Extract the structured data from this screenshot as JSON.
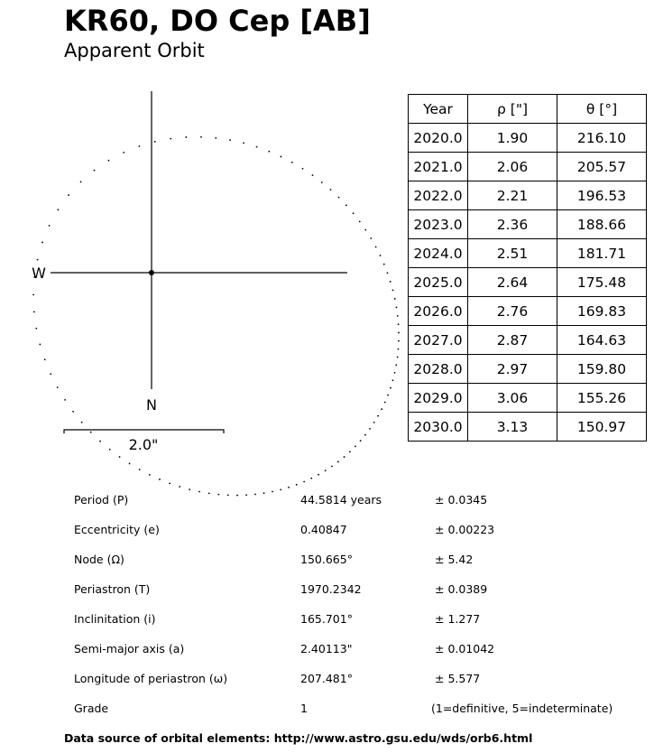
{
  "header": {
    "title": "KR60, DO Cep [AB]",
    "subtitle": "Apparent Orbit"
  },
  "chart_data": {
    "type": "scatter",
    "description_labels": {
      "west": "W",
      "north": "N",
      "scale_bar": "2.0\""
    },
    "scale_bar_arcsec": 2.0,
    "orbit_elements": {
      "P": 44.5814,
      "e": 0.40847,
      "Omega": 150.665,
      "T": 1970.2342,
      "i": 165.701,
      "a": 2.40113,
      "omega": 207.481
    },
    "primary": [
      0,
      0
    ]
  },
  "table": {
    "headers": [
      "Year",
      "ρ [\"]",
      "θ [°]"
    ],
    "rows": [
      [
        "2020.0",
        "1.90",
        "216.10"
      ],
      [
        "2021.0",
        "2.06",
        "205.57"
      ],
      [
        "2022.0",
        "2.21",
        "196.53"
      ],
      [
        "2023.0",
        "2.36",
        "188.66"
      ],
      [
        "2024.0",
        "2.51",
        "181.71"
      ],
      [
        "2025.0",
        "2.64",
        "175.48"
      ],
      [
        "2026.0",
        "2.76",
        "169.83"
      ],
      [
        "2027.0",
        "2.87",
        "164.63"
      ],
      [
        "2028.0",
        "2.97",
        "159.80"
      ],
      [
        "2029.0",
        "3.06",
        "155.26"
      ],
      [
        "2030.0",
        "3.13",
        "150.97"
      ]
    ]
  },
  "elements": [
    {
      "label": "Period (P)",
      "value": "44.5814 years",
      "error": "± 0.0345"
    },
    {
      "label": "Eccentricity (e)",
      "value": "0.40847",
      "error": "± 0.00223"
    },
    {
      "label": "Node (Ω)",
      "value": "150.665°",
      "error": "± 5.42"
    },
    {
      "label": "Periastron (T)",
      "value": "1970.2342",
      "error": "± 0.0389"
    },
    {
      "label": "Inclinitation (i)",
      "value": "165.701°",
      "error": "± 1.277"
    },
    {
      "label": "Semi-major axis (a)",
      "value": "2.40113\"",
      "error": "± 0.01042"
    },
    {
      "label": "Longitude of periastron (ω)",
      "value": "207.481°",
      "error": "± 5.577"
    },
    {
      "label": "Grade",
      "value": "1",
      "error": "(1=definitive, 5=indeterminate)"
    }
  ],
  "footer": "Data source of orbital elements: http://www.astro.gsu.edu/wds/orb6.html"
}
